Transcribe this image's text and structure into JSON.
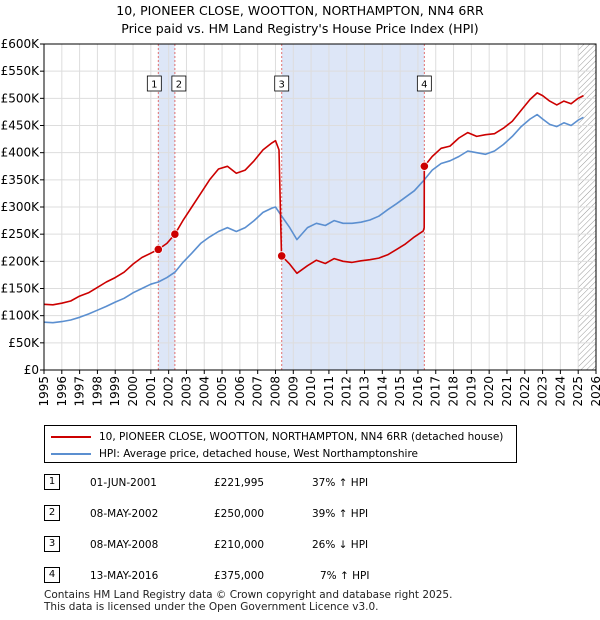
{
  "title": {
    "line1": "10, PIONEER CLOSE, WOOTTON, NORTHAMPTON, NN4 6RR",
    "line2": "Price paid vs. HM Land Registry's House Price Index (HPI)"
  },
  "colors": {
    "price_line": "#cc0000",
    "hpi_line": "#5b8fd0",
    "highlight": "#dde6f7",
    "grid": "#dddddd",
    "marker_line": "#e07070"
  },
  "chart_data": {
    "type": "line",
    "xlabel": "",
    "ylabel": "",
    "xlim": [
      1995,
      2026
    ],
    "ylim": [
      0,
      600000
    ],
    "yticks": [
      0,
      50000,
      100000,
      150000,
      200000,
      250000,
      300000,
      350000,
      400000,
      450000,
      500000,
      550000,
      600000
    ],
    "ytick_labels": [
      "£0",
      "£50K",
      "£100K",
      "£150K",
      "£200K",
      "£250K",
      "£300K",
      "£350K",
      "£400K",
      "£450K",
      "£500K",
      "£550K",
      "£600K"
    ],
    "xticks": [
      "1995",
      "1996",
      "1997",
      "1998",
      "1999",
      "2000",
      "2001",
      "2002",
      "2003",
      "2004",
      "2005",
      "2006",
      "2007",
      "2008",
      "2009",
      "2010",
      "2011",
      "2012",
      "2013",
      "2014",
      "2015",
      "2016",
      "2017",
      "2018",
      "2019",
      "2020",
      "2021",
      "2022",
      "2023",
      "2024",
      "2025",
      "2026"
    ],
    "highlight_spans": [
      [
        2001.42,
        2002.35
      ],
      [
        2008.35,
        2016.36
      ]
    ],
    "future_hatch_from": 2025.0,
    "series": [
      {
        "name": "10, PIONEER CLOSE, WOOTTON, NORTHAMPTON, NN4 6RR (detached house)",
        "x": [
          1995.0,
          1995.5,
          1996.0,
          1996.5,
          1997.0,
          1997.5,
          1998.0,
          1998.5,
          1999.0,
          1999.5,
          2000.0,
          2000.5,
          2001.0,
          2001.42,
          2001.9,
          2002.35,
          2002.8,
          2003.3,
          2003.8,
          2004.3,
          2004.8,
          2005.3,
          2005.8,
          2006.3,
          2006.8,
          2007.3,
          2007.8,
          2008.0,
          2008.2,
          2008.33,
          2008.35,
          2008.8,
          2009.2,
          2009.8,
          2010.3,
          2010.8,
          2011.3,
          2011.8,
          2012.3,
          2012.8,
          2013.3,
          2013.8,
          2014.3,
          2014.8,
          2015.3,
          2015.8,
          2016.3,
          2016.35,
          2016.36,
          2016.8,
          2017.3,
          2017.8,
          2018.3,
          2018.8,
          2019.3,
          2019.8,
          2020.3,
          2020.8,
          2021.3,
          2021.8,
          2022.3,
          2022.7,
          2023.0,
          2023.4,
          2023.8,
          2024.2,
          2024.6,
          2025.0,
          2025.3
        ],
        "values": [
          121000,
          120000,
          123000,
          127000,
          136000,
          142000,
          152000,
          162000,
          170000,
          180000,
          195000,
          207000,
          215000,
          221995,
          233000,
          250000,
          275000,
          300000,
          325000,
          350000,
          370000,
          375000,
          362000,
          368000,
          385000,
          405000,
          418000,
          422000,
          405000,
          218000,
          210000,
          195000,
          178000,
          192000,
          202000,
          196000,
          205000,
          200000,
          198000,
          201000,
          203000,
          206000,
          212000,
          222000,
          232000,
          245000,
          256000,
          262000,
          375000,
          393000,
          408000,
          412000,
          427000,
          437000,
          430000,
          433000,
          435000,
          445000,
          458000,
          478000,
          498000,
          510000,
          505000,
          495000,
          488000,
          495000,
          490000,
          500000,
          505000
        ]
      },
      {
        "name": "HPI: Average price, detached house, West Northamptonshire",
        "x": [
          1995.0,
          1995.5,
          1996.0,
          1996.5,
          1997.0,
          1997.5,
          1998.0,
          1998.5,
          1999.0,
          1999.5,
          2000.0,
          2000.5,
          2001.0,
          2001.42,
          2001.9,
          2002.35,
          2002.8,
          2003.3,
          2003.8,
          2004.3,
          2004.8,
          2005.3,
          2005.8,
          2006.3,
          2006.8,
          2007.3,
          2007.8,
          2008.0,
          2008.35,
          2008.8,
          2009.2,
          2009.8,
          2010.3,
          2010.8,
          2011.3,
          2011.8,
          2012.3,
          2012.8,
          2013.3,
          2013.8,
          2014.3,
          2014.8,
          2015.3,
          2015.8,
          2016.36,
          2016.8,
          2017.3,
          2017.8,
          2018.3,
          2018.8,
          2019.3,
          2019.8,
          2020.3,
          2020.8,
          2021.3,
          2021.8,
          2022.3,
          2022.7,
          2023.0,
          2023.4,
          2023.8,
          2024.2,
          2024.6,
          2025.0,
          2025.3
        ],
        "values": [
          88000,
          87000,
          89000,
          92000,
          97000,
          103000,
          110000,
          117000,
          125000,
          132000,
          142000,
          150000,
          158000,
          162000,
          170000,
          180000,
          198000,
          215000,
          233000,
          245000,
          255000,
          262000,
          255000,
          262000,
          275000,
          290000,
          298000,
          300000,
          283000,
          262000,
          240000,
          262000,
          270000,
          266000,
          275000,
          270000,
          270000,
          272000,
          276000,
          283000,
          295000,
          306000,
          318000,
          330000,
          350000,
          368000,
          380000,
          385000,
          393000,
          403000,
          400000,
          397000,
          403000,
          415000,
          430000,
          448000,
          462000,
          470000,
          462000,
          452000,
          448000,
          455000,
          450000,
          460000,
          465000
        ]
      }
    ],
    "sales": [
      {
        "num": "1",
        "x": 2001.42,
        "value": 221995
      },
      {
        "num": "2",
        "x": 2002.35,
        "value": 250000
      },
      {
        "num": "3",
        "x": 2008.35,
        "value": 210000
      },
      {
        "num": "4",
        "x": 2016.36,
        "value": 375000
      }
    ]
  },
  "legend": {
    "price_label": "10, PIONEER CLOSE, WOOTTON, NORTHAMPTON, NN4 6RR (detached house)",
    "hpi_label": "HPI: Average price, detached house, West Northamptonshire"
  },
  "sales_table": [
    {
      "num": "1",
      "date": "01-JUN-2001",
      "price": "£221,995",
      "hpi": "37% ↑ HPI"
    },
    {
      "num": "2",
      "date": "08-MAY-2002",
      "price": "£250,000",
      "hpi": "39% ↑ HPI"
    },
    {
      "num": "3",
      "date": "08-MAY-2008",
      "price": "£210,000",
      "hpi": "26% ↓ HPI"
    },
    {
      "num": "4",
      "date": "13-MAY-2016",
      "price": "£375,000",
      "hpi": "7% ↑ HPI"
    }
  ],
  "footer": {
    "line1": "Contains HM Land Registry data © Crown copyright and database right 2025.",
    "line2": "This data is licensed under the Open Government Licence v3.0."
  }
}
